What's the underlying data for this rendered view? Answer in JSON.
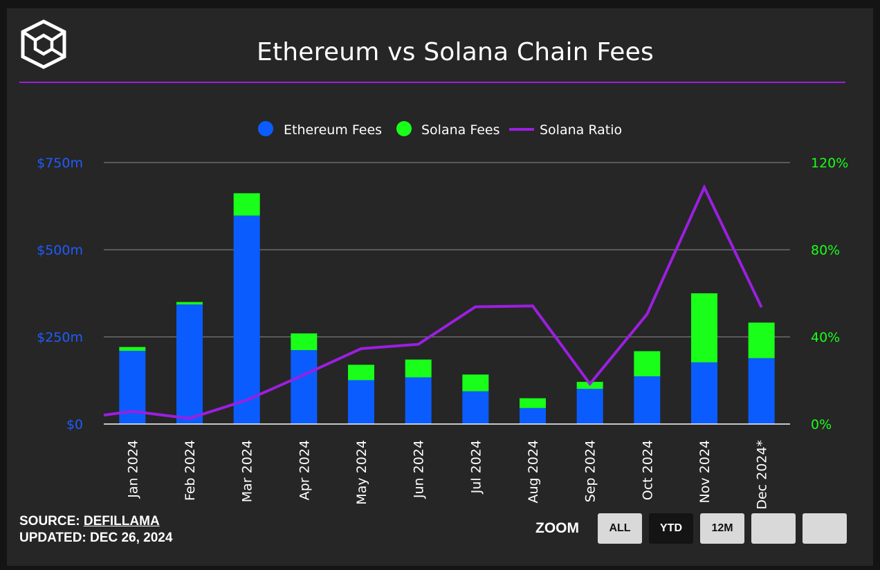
{
  "header": {
    "title": "Ethereum vs Solana Chain Fees"
  },
  "footer": {
    "source_label": "SOURCE:",
    "source_link": "DEFILLAMA",
    "updated_label": "UPDATED:",
    "updated_value": "DEC 26, 2024"
  },
  "zoom": {
    "label": "ZOOM",
    "buttons": [
      {
        "label": "ALL",
        "active": false
      },
      {
        "label": "YTD",
        "active": true
      },
      {
        "label": "12M",
        "active": false
      },
      {
        "label": "",
        "active": false
      },
      {
        "label": "",
        "active": false
      }
    ]
  },
  "colors": {
    "ethereum": "#0b5cff",
    "solana": "#19ff19",
    "ratio": "#9b1fe0",
    "grid": "#7a7a7a",
    "axis": "#ffffff"
  },
  "chart_data": {
    "type": "bar",
    "title": "Ethereum vs Solana Chain Fees",
    "stacked": true,
    "categories": [
      "Jan 2024",
      "Feb 2024",
      "Mar 2024",
      "Apr 2024",
      "May 2024",
      "Jun 2024",
      "Jul 2024",
      "Aug 2024",
      "Sep 2024",
      "Oct 2024",
      "Nov 2024",
      "Dec 2024*"
    ],
    "series": [
      {
        "name": "Ethereum Fees",
        "axis": "left",
        "kind": "bar",
        "values": [
          210,
          343,
          598,
          212,
          126,
          134,
          94,
          46,
          101,
          137,
          177,
          189
        ]
      },
      {
        "name": "Solana Fees",
        "axis": "left",
        "kind": "bar",
        "values": [
          11,
          7,
          64,
          48,
          44,
          51,
          48,
          28,
          20,
          72,
          198,
          102
        ]
      },
      {
        "name": "Solana Ratio",
        "axis": "right",
        "kind": "line",
        "values": [
          5.8,
          2.6,
          11.0,
          22.6,
          34.6,
          36.6,
          53.8,
          54.2,
          18.4,
          50.4,
          108.6,
          53.6
        ]
      }
    ],
    "ylim_left": [
      0,
      750
    ],
    "ylim_right": [
      0,
      120
    ],
    "yticks_left": [
      "$0",
      "$250m",
      "$500m",
      "$750m"
    ],
    "yticks_left_values": [
      0,
      250,
      500,
      750
    ],
    "yticks_right": [
      "0%",
      "40%",
      "80%",
      "120%"
    ],
    "yticks_right_values": [
      0,
      40,
      80,
      120
    ],
    "ratio_start_edge": 4.1,
    "legend": [
      "Ethereum Fees",
      "Solana Fees",
      "Solana Ratio"
    ],
    "legend_position": "top-center",
    "grid": true
  }
}
